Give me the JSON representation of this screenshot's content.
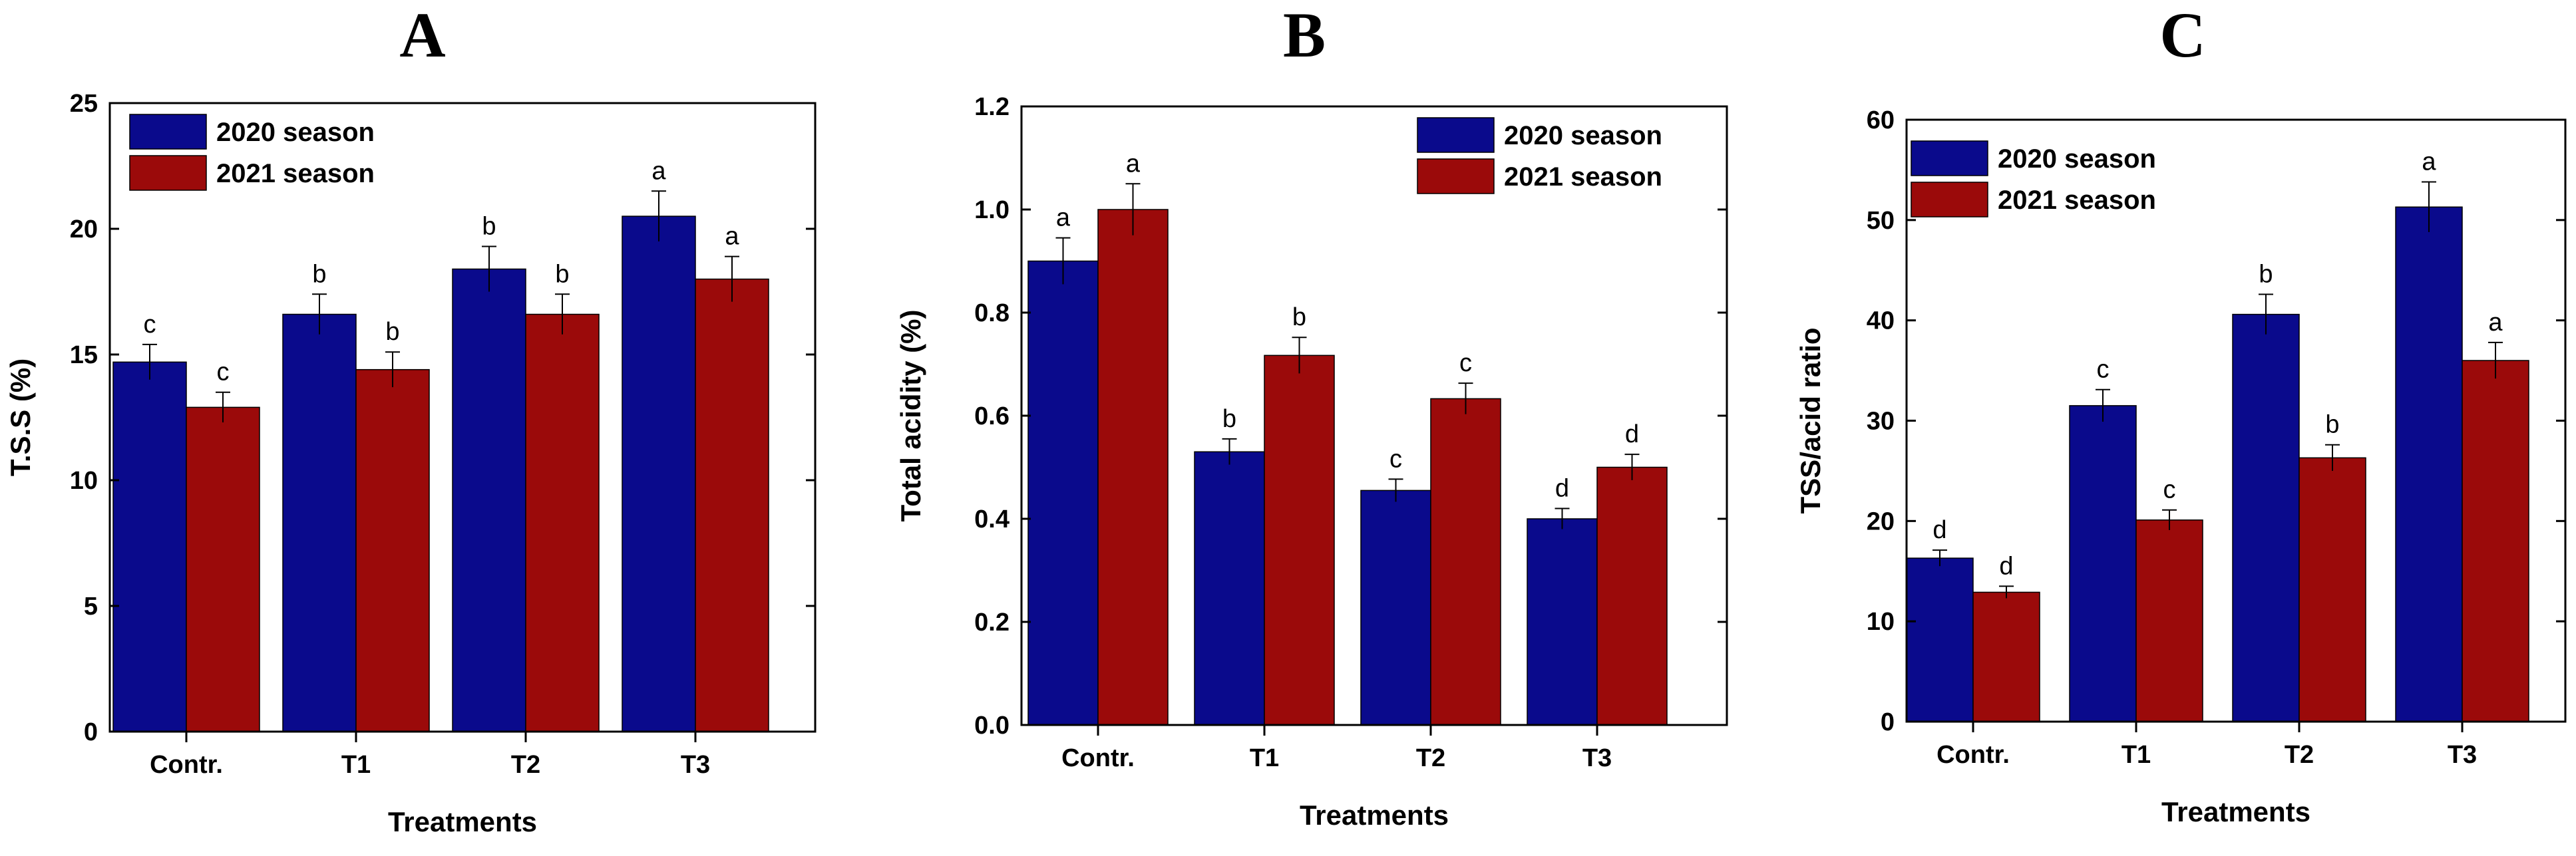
{
  "colors": {
    "series_2020": "#0a0a8c",
    "series_2021": "#9b0a0a",
    "axis": "#000000"
  },
  "chart_data": [
    {
      "type": "bar",
      "panel": "A",
      "title": "A",
      "xlabel": "Treatments",
      "ylabel": "T.S.S (%)",
      "categories": [
        "Contr.",
        "T1",
        "T2",
        "T3"
      ],
      "ylim": [
        0,
        25
      ],
      "yticks": [
        0,
        5,
        10,
        15,
        20,
        25
      ],
      "ytick_labels": [
        "0",
        "5",
        "10",
        "15",
        "20",
        "25"
      ],
      "legend_position": "top-left",
      "series": [
        {
          "name": "2020 season",
          "values": [
            14.7,
            16.6,
            18.4,
            20.5
          ],
          "errors": [
            0.7,
            0.8,
            0.9,
            1.0
          ],
          "letters": [
            "c",
            "b",
            "b",
            "a"
          ]
        },
        {
          "name": "2021 season",
          "values": [
            12.9,
            14.4,
            16.6,
            18.0
          ],
          "errors": [
            0.6,
            0.7,
            0.8,
            0.9
          ],
          "letters": [
            "c",
            "b",
            "b",
            "a"
          ]
        }
      ]
    },
    {
      "type": "bar",
      "panel": "B",
      "title": "B",
      "xlabel": "Treatments",
      "ylabel": "Total acidity (%)",
      "categories": [
        "Contr.",
        "T1",
        "T2",
        "T3"
      ],
      "ylim": [
        0,
        1.2
      ],
      "yticks": [
        0,
        0.2,
        0.4,
        0.6,
        0.8,
        1.0,
        1.2
      ],
      "ytick_labels": [
        "0.0",
        "0.2",
        "0.4",
        "0.6",
        "0.8",
        "1.0",
        "1.2"
      ],
      "legend_position": "top-right",
      "series": [
        {
          "name": "2020 season",
          "values": [
            0.9,
            0.53,
            0.455,
            0.4
          ],
          "errors": [
            0.045,
            0.025,
            0.022,
            0.02
          ],
          "letters": [
            "a",
            "b",
            "c",
            "d"
          ]
        },
        {
          "name": "2021 season",
          "values": [
            1.0,
            0.717,
            0.633,
            0.5
          ],
          "errors": [
            0.05,
            0.035,
            0.03,
            0.025
          ],
          "letters": [
            "a",
            "b",
            "c",
            "d"
          ]
        }
      ]
    },
    {
      "type": "bar",
      "panel": "C",
      "title": "C",
      "xlabel": "Treatments",
      "ylabel": "TSS/acid ratio",
      "categories": [
        "Contr.",
        "T1",
        "T2",
        "T3"
      ],
      "ylim": [
        0,
        60
      ],
      "yticks": [
        0,
        10,
        20,
        30,
        40,
        50,
        60
      ],
      "ytick_labels": [
        "0",
        "10",
        "20",
        "30",
        "40",
        "50",
        "60"
      ],
      "legend_position": "top-left",
      "series": [
        {
          "name": "2020 season",
          "values": [
            16.3,
            31.5,
            40.6,
            51.3
          ],
          "errors": [
            0.8,
            1.6,
            2.0,
            2.5
          ],
          "letters": [
            "d",
            "c",
            "b",
            "a"
          ]
        },
        {
          "name": "2021 season",
          "values": [
            12.9,
            20.1,
            26.3,
            36.0
          ],
          "errors": [
            0.6,
            1.0,
            1.3,
            1.8
          ],
          "letters": [
            "d",
            "c",
            "b",
            "a"
          ]
        }
      ]
    }
  ]
}
